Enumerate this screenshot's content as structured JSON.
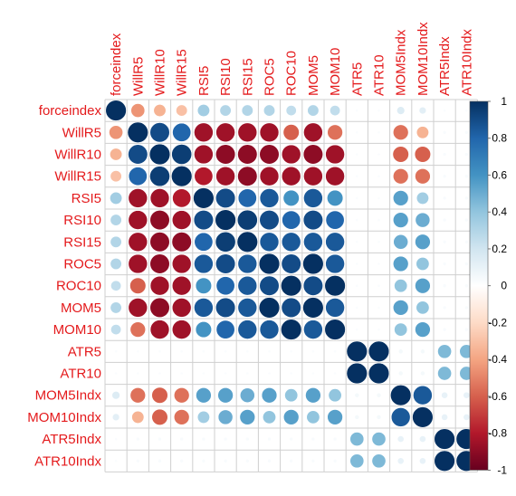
{
  "chart_data": {
    "type": "heatmap",
    "variables": [
      "forceindex",
      "WillR5",
      "WillR10",
      "WillR15",
      "RSI5",
      "RSI10",
      "RSI15",
      "ROC5",
      "ROC10",
      "MOM5",
      "MOM10",
      "ATR5",
      "ATR10",
      "MOM5Indx",
      "MOM10Indx",
      "ATR5Indx",
      "ATR10Indx"
    ],
    "matrix": [
      [
        1,
        -0.45,
        -0.35,
        -0.3,
        0.35,
        0.3,
        0.3,
        0.3,
        0.25,
        0.3,
        0.25,
        0.02,
        0.02,
        0.15,
        0.12,
        0.02,
        0.02
      ],
      [
        -0.45,
        1,
        0.9,
        0.8,
        -0.85,
        -0.85,
        -0.85,
        -0.85,
        -0.6,
        -0.85,
        -0.55,
        0.02,
        0.02,
        -0.55,
        -0.35,
        0.03,
        0.03
      ],
      [
        -0.35,
        0.9,
        1,
        0.95,
        -0.85,
        -0.9,
        -0.9,
        -0.9,
        -0.85,
        -0.9,
        -0.85,
        0.02,
        0.02,
        -0.6,
        -0.6,
        0.03,
        0.03
      ],
      [
        -0.3,
        0.8,
        0.95,
        1,
        -0.8,
        -0.85,
        -0.9,
        -0.85,
        -0.85,
        -0.85,
        -0.85,
        0.02,
        0.02,
        -0.55,
        -0.55,
        0.03,
        0.03
      ],
      [
        0.35,
        -0.85,
        -0.85,
        -0.8,
        1,
        0.9,
        0.8,
        0.85,
        0.6,
        0.85,
        0.6,
        0.02,
        0.02,
        0.55,
        0.35,
        0.03,
        0.03
      ],
      [
        0.3,
        -0.85,
        -0.9,
        -0.85,
        0.9,
        1,
        0.95,
        0.9,
        0.8,
        0.9,
        0.8,
        0.02,
        0.02,
        0.55,
        0.5,
        0.03,
        0.03
      ],
      [
        0.3,
        -0.85,
        -0.9,
        -0.9,
        0.8,
        0.95,
        1,
        0.85,
        0.85,
        0.85,
        0.85,
        0.02,
        0.02,
        0.5,
        0.55,
        0.03,
        0.03
      ],
      [
        0.3,
        -0.85,
        -0.9,
        -0.85,
        0.85,
        0.9,
        0.85,
        1,
        0.9,
        1,
        0.85,
        0.02,
        0.02,
        0.55,
        0.4,
        0.03,
        0.03
      ],
      [
        0.25,
        -0.6,
        -0.85,
        -0.85,
        0.6,
        0.8,
        0.85,
        0.9,
        1,
        0.9,
        1,
        0.02,
        0.02,
        0.4,
        0.55,
        0.03,
        0.03
      ],
      [
        0.3,
        -0.85,
        -0.9,
        -0.85,
        0.85,
        0.9,
        0.85,
        1,
        0.9,
        1,
        0.85,
        0.02,
        0.02,
        0.55,
        0.4,
        0.03,
        0.03
      ],
      [
        0.25,
        -0.55,
        -0.85,
        -0.85,
        0.6,
        0.8,
        0.85,
        0.85,
        1,
        0.85,
        1,
        0.02,
        0.02,
        0.4,
        0.55,
        0.03,
        0.03
      ],
      [
        0.02,
        0.02,
        0.02,
        0.02,
        0.02,
        0.02,
        0.02,
        0.02,
        0.02,
        0.02,
        0.02,
        1,
        1,
        0.05,
        0.05,
        0.45,
        0.45
      ],
      [
        0.02,
        0.02,
        0.02,
        0.02,
        0.02,
        0.02,
        0.02,
        0.02,
        0.02,
        0.02,
        0.02,
        1,
        1,
        0.05,
        0.05,
        0.45,
        0.45
      ],
      [
        0.15,
        -0.55,
        -0.6,
        -0.55,
        0.55,
        0.55,
        0.5,
        0.55,
        0.4,
        0.55,
        0.4,
        0.05,
        0.05,
        1,
        0.85,
        0.1,
        0.1
      ],
      [
        0.12,
        -0.35,
        -0.6,
        -0.55,
        0.35,
        0.5,
        0.55,
        0.4,
        0.55,
        0.4,
        0.55,
        0.05,
        0.05,
        0.85,
        1,
        0.1,
        0.1
      ],
      [
        0.02,
        0.03,
        0.03,
        0.03,
        0.03,
        0.03,
        0.03,
        0.03,
        0.03,
        0.03,
        0.03,
        0.45,
        0.45,
        0.1,
        0.1,
        1,
        1
      ],
      [
        0.02,
        0.03,
        0.03,
        0.03,
        0.03,
        0.03,
        0.03,
        0.03,
        0.03,
        0.03,
        0.03,
        0.45,
        0.45,
        0.1,
        0.1,
        1,
        1
      ]
    ],
    "color_scale": {
      "range": [
        -1,
        1
      ],
      "ticks": [
        "1",
        "0.8",
        "0.6",
        "0.4",
        "0.2",
        "0",
        "-0.2",
        "-0.4",
        "-0.6",
        "-0.8",
        "-1"
      ],
      "colors": [
        "#67001F",
        "#B2182B",
        "#D6604D",
        "#F4A582",
        "#FDDBC7",
        "#FFFFFF",
        "#D1E5F0",
        "#92C5DE",
        "#4393C3",
        "#2166AC",
        "#053061"
      ]
    },
    "label_color": "#e41a1c",
    "grid": true,
    "legend_placement": "right"
  }
}
